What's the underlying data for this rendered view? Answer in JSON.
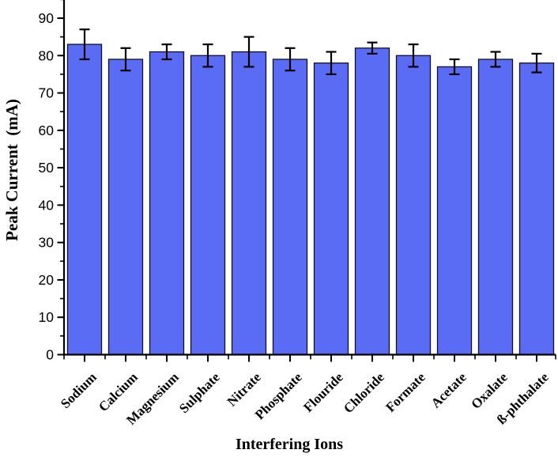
{
  "chart_data": {
    "type": "bar",
    "title": "",
    "xlabel": "Interfering Ions",
    "ylabel": "Peak Current  (mA)",
    "categories": [
      "Sodium",
      "Calcium",
      "Magnesium",
      "Sulphate",
      "Nitrate",
      "Phosphate",
      "Flouride",
      "Chloride",
      "Formate",
      "Acetate",
      "Oxalate",
      "ß-phthalate"
    ],
    "values": [
      83,
      79,
      81,
      80,
      81,
      79,
      78,
      82,
      80,
      77,
      79,
      78
    ],
    "errors": [
      4,
      3,
      2,
      3,
      4,
      3,
      3,
      1.5,
      3,
      2,
      2,
      2.5
    ],
    "ylim": [
      0,
      95
    ],
    "yticks": [
      0,
      10,
      20,
      30,
      40,
      50,
      60,
      70,
      80,
      90
    ],
    "ytick_minor_interval": 5,
    "grid": false,
    "legend": "none",
    "bar_color": "#5b6cf4",
    "bar_border_color": "#10102e",
    "error_bar_color": "#000000",
    "axis_color": "#000000",
    "tick_label_color": "#000000"
  }
}
